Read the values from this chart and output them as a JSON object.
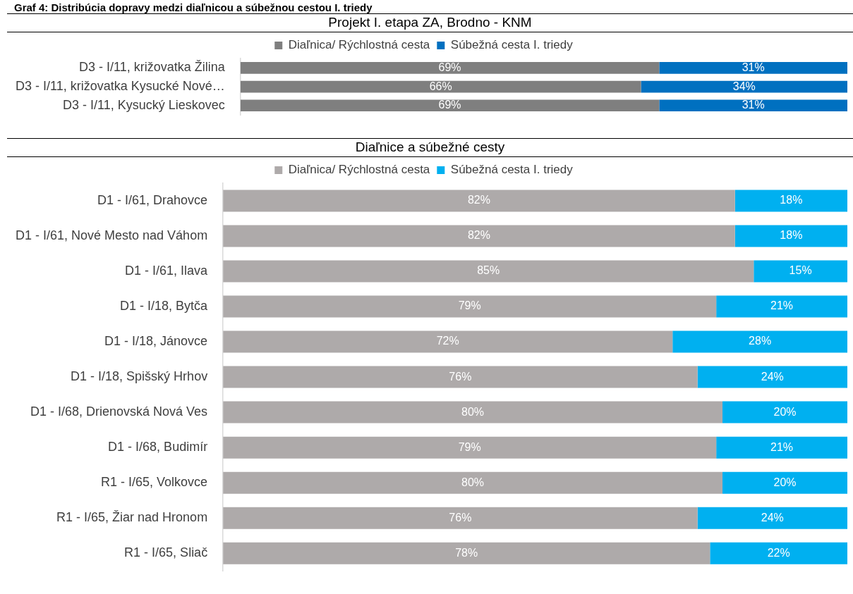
{
  "chart_data": [
    {
      "type": "bar",
      "title": "Projekt I. etapa ZA, Brodno - KNM",
      "annotations": [
        "Graf 4: Distribúcia dopravy medzi diaľnicou a súbežnou cestou I. triedy"
      ],
      "orientation": "horizontal",
      "stacked": true,
      "tick_labels": "y",
      "grid": false,
      "legend": "top",
      "categories": [
        "D3 - I/11, križovatka Žilina",
        "D3 - I/11, križovatka Kysucké Nové…",
        "D3 - I/11, Kysucký Lieskovec"
      ],
      "series": [
        {
          "name": "Diaľnica/ Rýchlostná cesta",
          "color": "#7f7f7f",
          "values": [
            69,
            66,
            69
          ],
          "value_labels": [
            "69%",
            "66%",
            "69%"
          ]
        },
        {
          "name": "Súbežná cesta I. triedy",
          "color": "#0070c0",
          "values": [
            31,
            34,
            31
          ],
          "value_labels": [
            "31%",
            "34%",
            "31%"
          ]
        }
      ]
    },
    {
      "type": "bar",
      "title": "Diaľnice a súbežné cesty",
      "orientation": "horizontal",
      "stacked": true,
      "tick_labels": "y",
      "grid": false,
      "legend": "top",
      "categories": [
        "D1 - I/61, Drahovce",
        "D1 - I/61, Nové Mesto nad Váhom",
        "D1 - I/61, Ilava",
        "D1 - I/18, Bytča",
        "D1 - I/18, Jánovce",
        "D1 - I/18, Spišský Hrhov",
        "D1 - I/68, Drienovská Nová Ves",
        "D1 - I/68, Budimír",
        "R1 - I/65, Volkovce",
        "R1 - I/65, Žiar nad Hronom",
        "R1 - I/65, Sliač"
      ],
      "series": [
        {
          "name": "Diaľnica/ Rýchlostná cesta",
          "color": "#aeaaaa",
          "values": [
            82,
            82,
            85,
            79,
            72,
            76,
            80,
            79,
            80,
            76,
            78
          ],
          "value_labels": [
            "82%",
            "82%",
            "85%",
            "79%",
            "72%",
            "76%",
            "80%",
            "79%",
            "80%",
            "76%",
            "78%"
          ]
        },
        {
          "name": "Súbežná cesta I. triedy",
          "color": "#00b0f0",
          "values": [
            18,
            18,
            15,
            21,
            28,
            24,
            20,
            21,
            20,
            24,
            22
          ],
          "value_labels": [
            "18%",
            "18%",
            "15%",
            "21%",
            "28%",
            "24%",
            "20%",
            "21%",
            "20%",
            "24%",
            "22%"
          ]
        }
      ]
    }
  ]
}
